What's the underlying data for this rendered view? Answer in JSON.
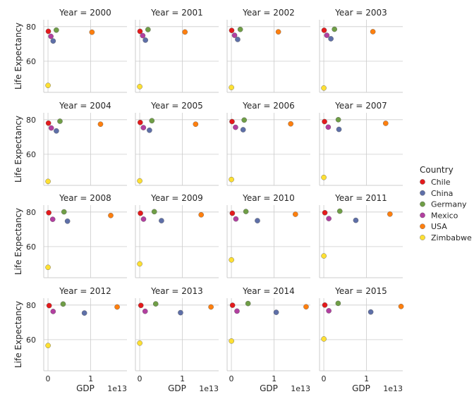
{
  "chart_data": {
    "type": "scatter",
    "facet_by": "Year",
    "facet_title_format": "Year = {v}",
    "xlabel": "GDP",
    "ylabel": "Life Expectancy",
    "x_offset_label": "1e13",
    "xlim": [
      -0.1,
      1.85
    ],
    "ylim": [
      42,
      84
    ],
    "x_ticks": [
      0,
      1
    ],
    "x_tick_labels": [
      "0",
      "1"
    ],
    "y_ticks": [
      60,
      80
    ],
    "y_tick_labels": [
      "60",
      "80"
    ],
    "grid": true,
    "legend": {
      "title": "Country",
      "placement": "right"
    },
    "series": [
      {
        "name": "Chile",
        "color": "#e41a1c"
      },
      {
        "name": "China",
        "color": "#5e6fa8"
      },
      {
        "name": "Germany",
        "color": "#6f9e46"
      },
      {
        "name": "Mexico",
        "color": "#b23fa0"
      },
      {
        "name": "USA",
        "color": "#ff7f0e"
      },
      {
        "name": "Zimbabwe",
        "color": "#ffe033"
      }
    ],
    "facets": [
      {
        "year": "2000",
        "points": [
          [
            0.008,
            77.3
          ],
          [
            0.121,
            71.7
          ],
          [
            0.195,
            78.0
          ],
          [
            0.068,
            74.4
          ],
          [
            1.03,
            76.8
          ],
          [
            0.0006,
            46.0
          ]
        ]
      },
      {
        "year": "2001",
        "points": [
          [
            0.007,
            77.3
          ],
          [
            0.134,
            72.2
          ],
          [
            0.195,
            78.3
          ],
          [
            0.072,
            74.8
          ],
          [
            1.06,
            76.9
          ],
          [
            0.0007,
            45.3
          ]
        ]
      },
      {
        "year": "2002",
        "points": [
          [
            0.007,
            77.8
          ],
          [
            0.147,
            72.6
          ],
          [
            0.208,
            78.4
          ],
          [
            0.074,
            75.0
          ],
          [
            1.1,
            77.0
          ],
          [
            0.0007,
            44.8
          ]
        ]
      },
      {
        "year": "2003",
        "points": [
          [
            0.008,
            77.9
          ],
          [
            0.166,
            73.0
          ],
          [
            0.25,
            78.5
          ],
          [
            0.071,
            75.0
          ],
          [
            1.15,
            77.1
          ],
          [
            0.0006,
            44.5
          ]
        ]
      },
      {
        "year": "2004",
        "points": [
          [
            0.01,
            78.0
          ],
          [
            0.196,
            73.5
          ],
          [
            0.28,
            79.1
          ],
          [
            0.077,
            75.2
          ],
          [
            1.23,
            77.4
          ],
          [
            0.0006,
            44.3
          ]
        ]
      },
      {
        "year": "2005",
        "points": [
          [
            0.012,
            78.4
          ],
          [
            0.229,
            73.9
          ],
          [
            0.285,
            79.4
          ],
          [
            0.087,
            75.4
          ],
          [
            1.31,
            77.4
          ],
          [
            0.0006,
            44.6
          ]
        ]
      },
      {
        "year": "2006",
        "points": [
          [
            0.015,
            78.9
          ],
          [
            0.275,
            74.2
          ],
          [
            0.3,
            79.8
          ],
          [
            0.097,
            75.6
          ],
          [
            1.39,
            77.6
          ],
          [
            0.0005,
            45.4
          ]
        ]
      },
      {
        "year": "2007",
        "points": [
          [
            0.017,
            78.9
          ],
          [
            0.355,
            74.4
          ],
          [
            0.34,
            80.0
          ],
          [
            0.104,
            75.7
          ],
          [
            1.45,
            77.9
          ],
          [
            0.0005,
            46.6
          ]
        ]
      },
      {
        "year": "2008",
        "points": [
          [
            0.018,
            79.6
          ],
          [
            0.456,
            74.7
          ],
          [
            0.375,
            80.1
          ],
          [
            0.11,
            75.8
          ],
          [
            1.47,
            78.0
          ],
          [
            0.0004,
            48.0
          ]
        ]
      },
      {
        "year": "2009",
        "points": [
          [
            0.017,
            79.3
          ],
          [
            0.51,
            75.0
          ],
          [
            0.342,
            80.2
          ],
          [
            0.09,
            75.9
          ],
          [
            1.44,
            78.4
          ],
          [
            0.0008,
            50.0
          ]
        ]
      },
      {
        "year": "2010",
        "points": [
          [
            0.022,
            79.3
          ],
          [
            0.61,
            75.0
          ],
          [
            0.34,
            80.3
          ],
          [
            0.105,
            76.0
          ],
          [
            1.5,
            78.7
          ],
          [
            0.001,
            52.3
          ]
        ]
      },
      {
        "year": "2011",
        "points": [
          [
            0.025,
            79.6
          ],
          [
            0.75,
            75.2
          ],
          [
            0.375,
            80.5
          ],
          [
            0.117,
            76.2
          ],
          [
            1.55,
            78.8
          ],
          [
            0.0012,
            54.6
          ]
        ]
      },
      {
        "year": "2012",
        "points": [
          [
            0.027,
            79.7
          ],
          [
            0.853,
            75.4
          ],
          [
            0.354,
            80.6
          ],
          [
            0.12,
            76.3
          ],
          [
            1.62,
            78.9
          ],
          [
            0.0013,
            56.6
          ]
        ]
      },
      {
        "year": "2013",
        "points": [
          [
            0.028,
            79.8
          ],
          [
            0.957,
            75.6
          ],
          [
            0.375,
            80.7
          ],
          [
            0.127,
            76.4
          ],
          [
            1.67,
            78.9
          ],
          [
            0.0014,
            58.0
          ]
        ]
      },
      {
        "year": "2014",
        "points": [
          [
            0.026,
            79.9
          ],
          [
            1.05,
            75.8
          ],
          [
            0.39,
            80.9
          ],
          [
            0.131,
            76.5
          ],
          [
            1.75,
            79.0
          ],
          [
            0.0014,
            59.2
          ]
        ]
      },
      {
        "year": "2015",
        "points": [
          [
            0.024,
            80.0
          ],
          [
            1.1,
            76.0
          ],
          [
            0.336,
            81.0
          ],
          [
            0.117,
            76.7
          ],
          [
            1.81,
            79.2
          ],
          [
            0.0014,
            60.4
          ]
        ]
      }
    ]
  }
}
